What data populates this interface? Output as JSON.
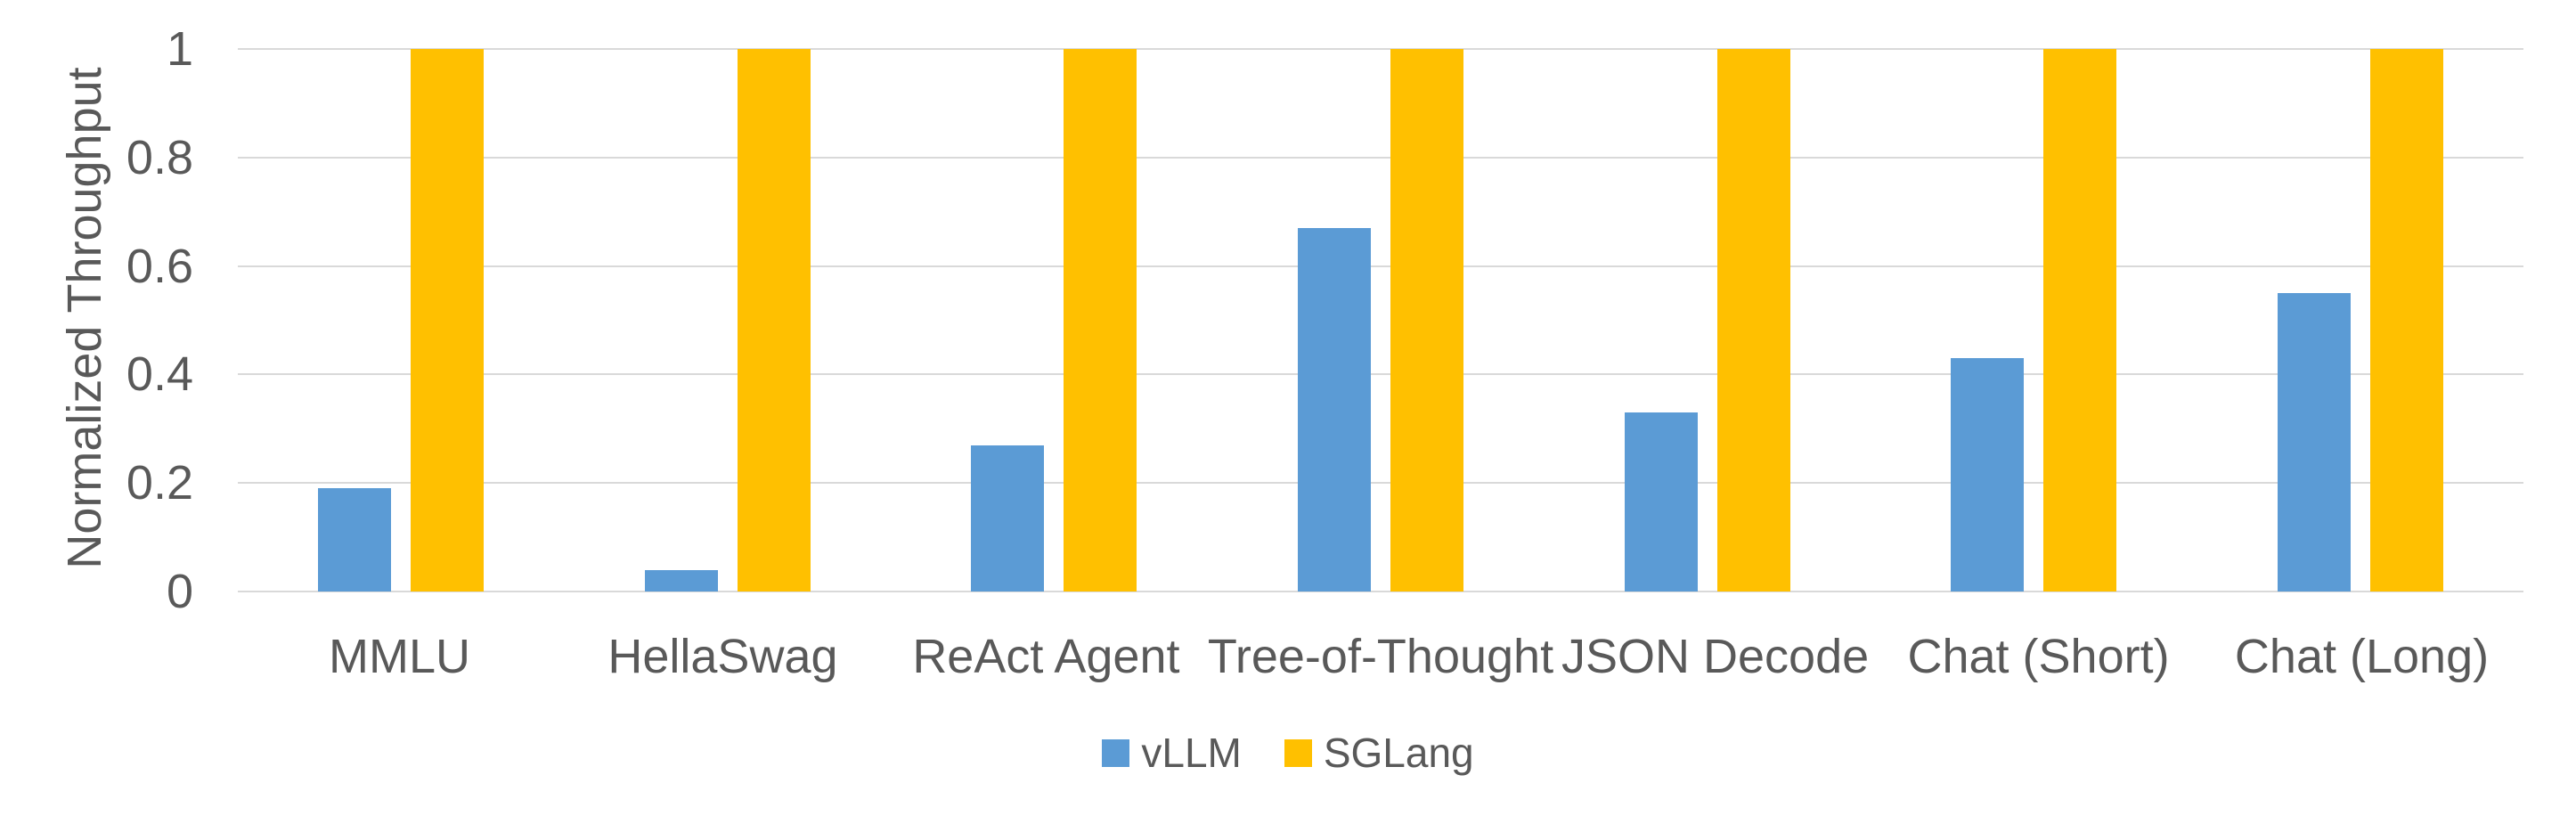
{
  "chart_data": {
    "type": "bar",
    "title": "",
    "xlabel": "",
    "ylabel": "Normalized Throughput",
    "ylim": [
      0,
      1
    ],
    "grid": true,
    "legend_position": "bottom",
    "categories": [
      "MMLU",
      "HellaSwag",
      "ReAct Agent",
      "Tree-of-Thought",
      "JSON Decode",
      "Chat (Short)",
      "Chat (Long)"
    ],
    "series": [
      {
        "name": "vLLM",
        "color": "#5B9BD5",
        "values": [
          0.19,
          0.04,
          0.27,
          0.67,
          0.33,
          0.43,
          0.55
        ]
      },
      {
        "name": "SGLang",
        "color": "#FFC000",
        "values": [
          1,
          1,
          1,
          1,
          1,
          1,
          1
        ]
      }
    ],
    "yticks": [
      {
        "value": 0,
        "label": "0"
      },
      {
        "value": 0.2,
        "label": "0.2"
      },
      {
        "value": 0.4,
        "label": "0.4"
      },
      {
        "value": 0.6,
        "label": "0.6"
      },
      {
        "value": 0.8,
        "label": "0.8"
      },
      {
        "value": 1,
        "label": "1"
      }
    ],
    "colors": {
      "grid": "#D9D9D9",
      "text": "#595959",
      "background": "#FFFFFF"
    }
  }
}
